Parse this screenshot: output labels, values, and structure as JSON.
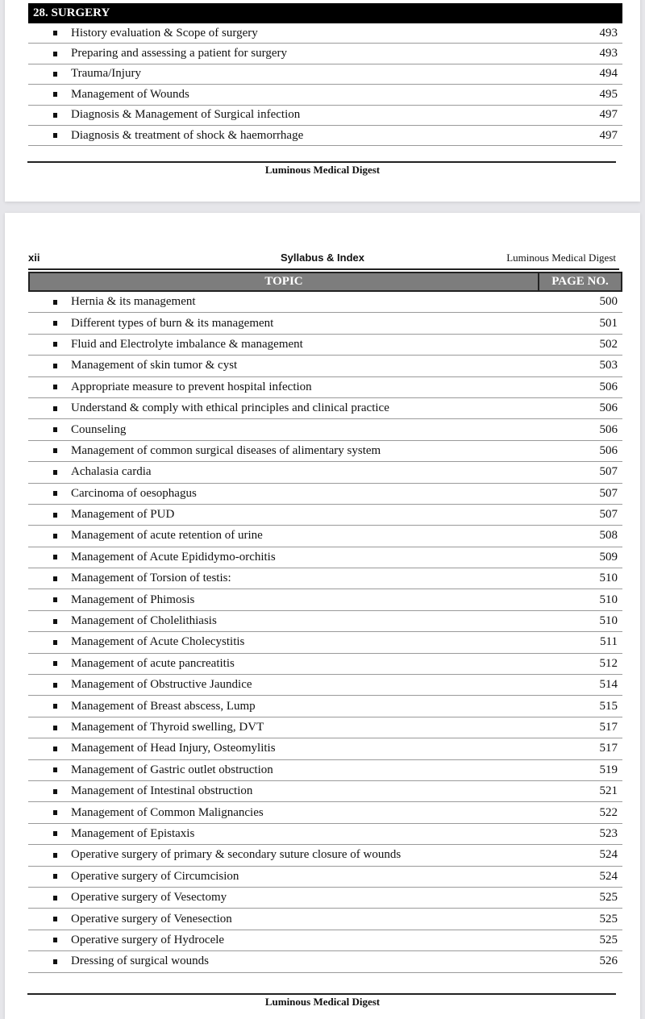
{
  "page1": {
    "section_title": "28. SURGERY",
    "items": [
      {
        "topic": "History evaluation & Scope of surgery",
        "page": "493"
      },
      {
        "topic": "Preparing and assessing a patient for surgery",
        "page": "493"
      },
      {
        "topic": "Trauma/Injury",
        "page": "494"
      },
      {
        "topic": "Management of Wounds",
        "page": "495"
      },
      {
        "topic": "Diagnosis & Management of Surgical  infection",
        "page": "497"
      },
      {
        "topic": "Diagnosis & treatment of shock & haemorrhage",
        "page": "497"
      }
    ],
    "footer": "Luminous Medical Digest"
  },
  "page2": {
    "page_number": "xii",
    "running_title": "Syllabus & Index",
    "book_title": "Luminous Medical Digest",
    "columns": {
      "topic": "TOPIC",
      "page": "PAGE NO."
    },
    "items": [
      {
        "topic": "Hernia & its management",
        "page": "500"
      },
      {
        "topic": "Different types of burn & its management",
        "page": "501"
      },
      {
        "topic": "Fluid and Electrolyte imbalance & management",
        "page": "502"
      },
      {
        "topic": "Management of skin tumor & cyst",
        "page": "503"
      },
      {
        "topic": "Appropriate measure to prevent hospital infection",
        "page": "506"
      },
      {
        "topic": "Understand & comply with ethical principles and clinical practice",
        "page": "506"
      },
      {
        "topic": "Counseling",
        "page": "506"
      },
      {
        "topic": "Management of common surgical diseases of alimentary system",
        "page": "506"
      },
      {
        "topic": "Achalasia cardia",
        "page": "507"
      },
      {
        "topic": "Carcinoma of oesophagus",
        "page": "507"
      },
      {
        "topic": "Management of PUD",
        "page": "507"
      },
      {
        "topic": "Management of acute retention of urine",
        "page": "508"
      },
      {
        "topic": "Management of Acute Epididymo-orchitis",
        "page": "509"
      },
      {
        "topic": "Management of Torsion of testis:",
        "page": "510"
      },
      {
        "topic": "Management of Phimosis",
        "page": "510"
      },
      {
        "topic": "Management of Cholelithiasis",
        "page": "510"
      },
      {
        "topic": "Management of Acute Cholecystitis",
        "page": "511"
      },
      {
        "topic": "Management of acute pancreatitis",
        "page": "512"
      },
      {
        "topic": "Management of Obstructive Jaundice",
        "page": "514"
      },
      {
        "topic": "Management of Breast abscess, Lump",
        "page": "515"
      },
      {
        "topic": "Management of Thyroid swelling, DVT",
        "page": "517"
      },
      {
        "topic": "Management of Head Injury, Osteomylitis",
        "page": "517"
      },
      {
        "topic": "Management of Gastric outlet obstruction",
        "page": "519"
      },
      {
        "topic": "Management of Intestinal obstruction",
        "page": "521"
      },
      {
        "topic": "Management of Common Malignancies",
        "page": "522"
      },
      {
        "topic": "Management of Epistaxis",
        "page": "523"
      },
      {
        "topic": "Operative surgery of primary & secondary suture closure of wounds",
        "page": "524"
      },
      {
        "topic": "Operative surgery of Circumcision",
        "page": "524"
      },
      {
        "topic": "Operative surgery of Vesectomy",
        "page": "525"
      },
      {
        "topic": "Operative surgery of Venesection",
        "page": "525"
      },
      {
        "topic": "Operative surgery of Hydrocele",
        "page": "525"
      },
      {
        "topic": "Dressing of surgical wounds",
        "page": "526"
      }
    ],
    "footer": "Luminous Medical Digest"
  }
}
